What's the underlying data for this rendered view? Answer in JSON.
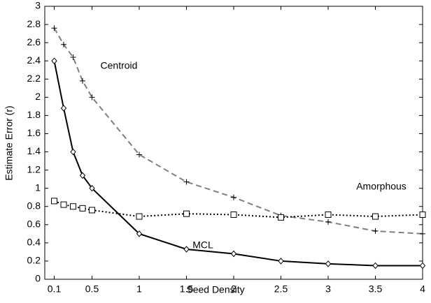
{
  "chart_data": {
    "type": "line",
    "x_label": "Seed Density",
    "y_label": "Estimate Error (r)",
    "xlim": [
      0,
      4
    ],
    "ylim": [
      0,
      3
    ],
    "xticks": [
      0.1,
      0.5,
      1,
      1.5,
      2,
      2.5,
      3,
      3.5,
      4
    ],
    "yticks": [
      0,
      0.2,
      0.4,
      0.6,
      0.8,
      1,
      1.2,
      1.4,
      1.6,
      1.8,
      2,
      2.2,
      2.4,
      2.6,
      2.8,
      3
    ],
    "grid": false,
    "x": [
      0.1,
      0.2,
      0.3,
      0.4,
      0.5,
      1,
      1.5,
      2,
      2.5,
      3,
      3.5,
      4
    ],
    "series": [
      {
        "name": "MCL",
        "color": "#000000",
        "dash": "solid",
        "marker": "diamond",
        "values": [
          2.4,
          1.88,
          1.4,
          1.14,
          1.0,
          0.5,
          0.33,
          0.28,
          0.2,
          0.17,
          0.15,
          0.15
        ]
      },
      {
        "name": "Centroid",
        "color": "#808080",
        "dash": "dashed",
        "marker": "plus",
        "values": [
          2.76,
          2.58,
          2.44,
          2.18,
          2.0,
          1.37,
          1.07,
          0.9,
          0.7,
          0.63,
          0.53,
          0.5
        ]
      },
      {
        "name": "Amorphous",
        "color": "#000000",
        "dash": "dotted",
        "marker": "square",
        "values": [
          0.86,
          0.82,
          0.8,
          0.78,
          0.76,
          0.69,
          0.72,
          0.71,
          0.68,
          0.71,
          0.69,
          0.71
        ]
      }
    ]
  }
}
